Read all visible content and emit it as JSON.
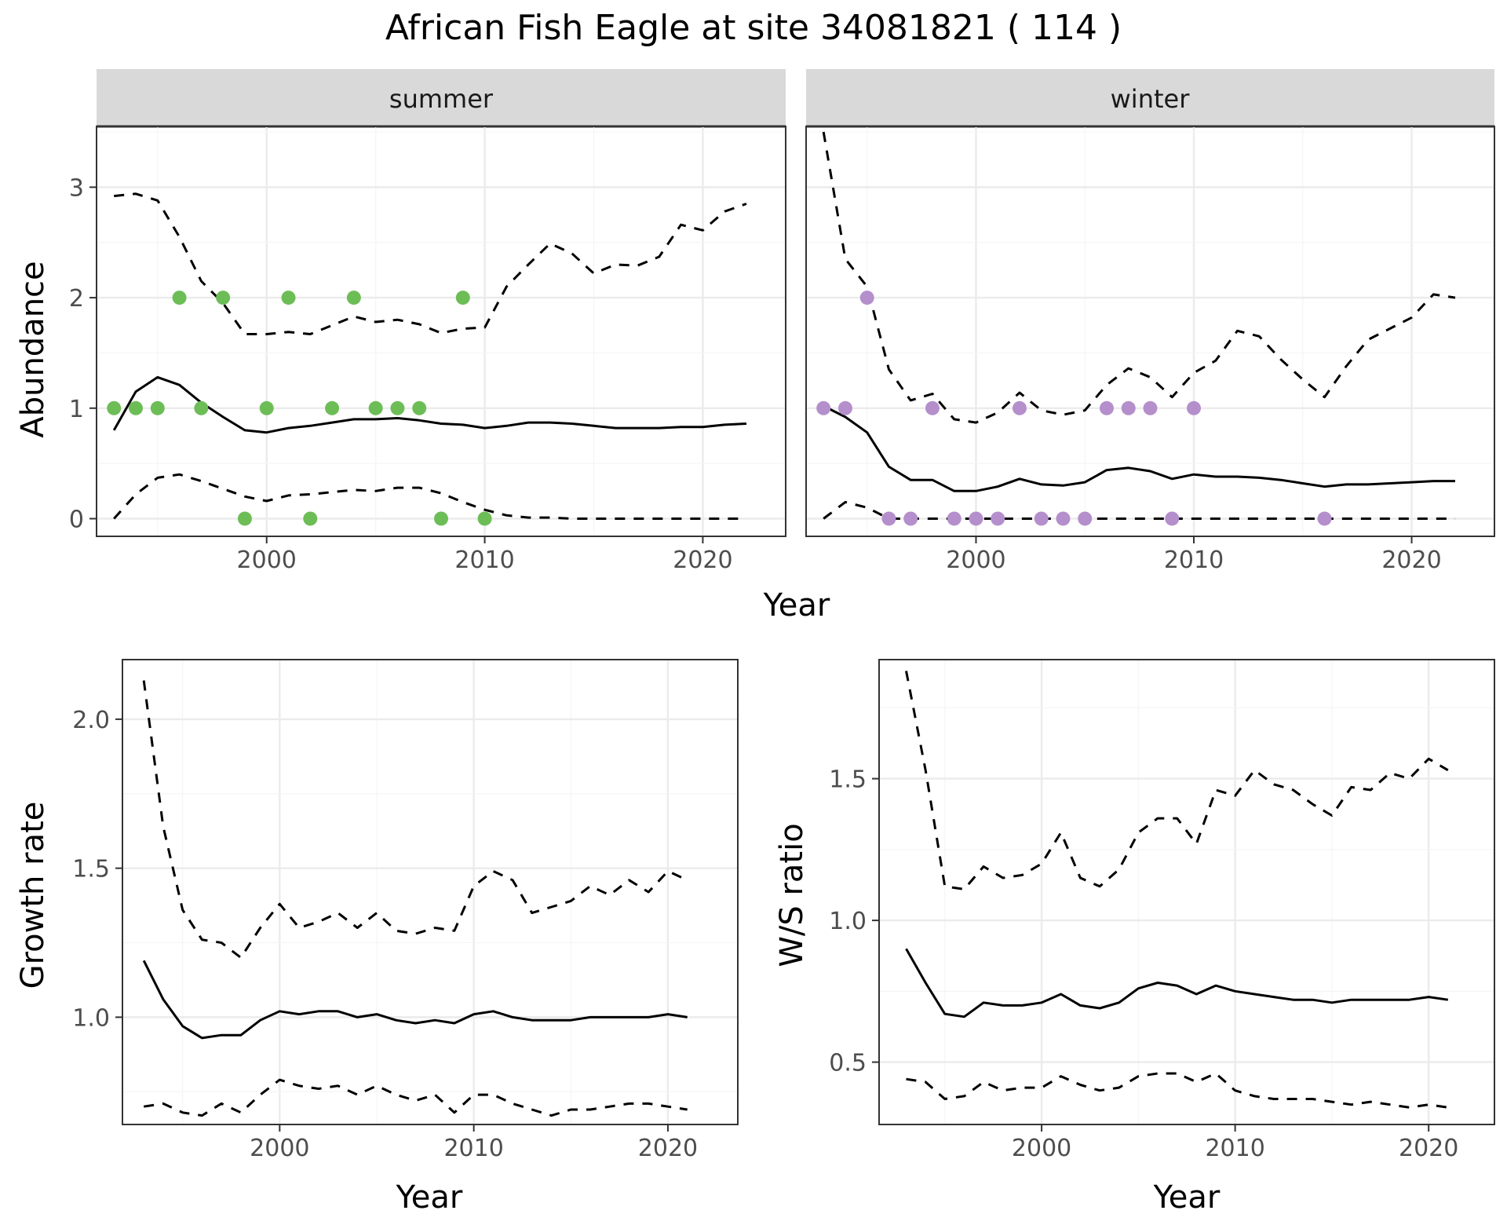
{
  "title": "African Fish Eagle at site 34081821 ( 114 )",
  "colors": {
    "summer_points": "#6dbd57",
    "winter_points": "#b48fcc",
    "strip_fill": "#d9d9d9"
  },
  "chart_data": [
    {
      "type": "line",
      "panel": "summer",
      "strip_label": "summer",
      "xlabel": "Year",
      "ylabel": "Abundance",
      "xlim": [
        1992.2,
        2023.8
      ],
      "ylim": [
        -0.16,
        3.55
      ],
      "xticks": [
        2000,
        2010,
        2020
      ],
      "yticks": [
        0,
        1,
        2,
        3
      ],
      "x": [
        1993,
        1994,
        1995,
        1996,
        1997,
        1998,
        1999,
        2000,
        2001,
        2002,
        2003,
        2004,
        2005,
        2006,
        2007,
        2008,
        2009,
        2010,
        2011,
        2012,
        2013,
        2014,
        2015,
        2016,
        2017,
        2018,
        2019,
        2020,
        2021,
        2022
      ],
      "series": [
        {
          "role": "mean",
          "values": [
            0.8,
            1.15,
            1.28,
            1.21,
            1.05,
            0.92,
            0.8,
            0.78,
            0.82,
            0.84,
            0.87,
            0.9,
            0.9,
            0.91,
            0.89,
            0.86,
            0.85,
            0.82,
            0.84,
            0.87,
            0.87,
            0.86,
            0.84,
            0.82,
            0.82,
            0.82,
            0.83,
            0.83,
            0.85,
            0.86
          ]
        },
        {
          "role": "upper",
          "values": [
            2.92,
            2.94,
            2.88,
            2.55,
            2.15,
            1.95,
            1.67,
            1.67,
            1.69,
            1.67,
            1.75,
            1.83,
            1.78,
            1.8,
            1.76,
            1.68,
            1.72,
            1.73,
            2.1,
            2.3,
            2.49,
            2.4,
            2.22,
            2.3,
            2.29,
            2.37,
            2.66,
            2.61,
            2.78,
            2.85
          ]
        },
        {
          "role": "lower",
          "values": [
            0.0,
            0.22,
            0.37,
            0.4,
            0.34,
            0.27,
            0.2,
            0.16,
            0.21,
            0.22,
            0.24,
            0.26,
            0.25,
            0.28,
            0.28,
            0.23,
            0.15,
            0.08,
            0.03,
            0.01,
            0.01,
            0.0,
            0.0,
            0.0,
            0.0,
            0.0,
            0.0,
            0.0,
            0.0,
            0.0
          ]
        }
      ],
      "points": {
        "x": [
          1993,
          1994,
          1995,
          1996,
          1997,
          1998,
          1999,
          2000,
          2001,
          2002,
          2003,
          2004,
          2005,
          2006,
          2007,
          2008,
          2009,
          2010
        ],
        "y": [
          1,
          1,
          1,
          2,
          1,
          2,
          0,
          1,
          2,
          0,
          1,
          2,
          1,
          1,
          1,
          0,
          2,
          0
        ]
      }
    },
    {
      "type": "line",
      "panel": "winter",
      "strip_label": "winter",
      "xlabel": "Year",
      "ylabel": "",
      "xlim": [
        1992.2,
        2023.8
      ],
      "ylim": [
        -0.16,
        3.55
      ],
      "xticks": [
        2000,
        2010,
        2020
      ],
      "yticks": [
        0,
        1,
        2,
        3
      ],
      "x": [
        1993,
        1994,
        1995,
        1996,
        1997,
        1998,
        1999,
        2000,
        2001,
        2002,
        2003,
        2004,
        2005,
        2006,
        2007,
        2008,
        2009,
        2010,
        2011,
        2012,
        2013,
        2014,
        2015,
        2016,
        2017,
        2018,
        2019,
        2020,
        2021,
        2022
      ],
      "series": [
        {
          "role": "mean",
          "values": [
            1.02,
            0.92,
            0.78,
            0.47,
            0.35,
            0.35,
            0.25,
            0.25,
            0.29,
            0.36,
            0.31,
            0.3,
            0.33,
            0.44,
            0.46,
            0.43,
            0.36,
            0.4,
            0.38,
            0.38,
            0.37,
            0.35,
            0.32,
            0.29,
            0.31,
            0.31,
            0.32,
            0.33,
            0.34,
            0.34
          ]
        },
        {
          "role": "upper",
          "values": [
            3.5,
            2.35,
            2.1,
            1.35,
            1.07,
            1.13,
            0.9,
            0.87,
            0.96,
            1.14,
            0.98,
            0.94,
            0.98,
            1.21,
            1.36,
            1.28,
            1.1,
            1.32,
            1.43,
            1.7,
            1.65,
            1.44,
            1.26,
            1.1,
            1.38,
            1.62,
            1.72,
            1.82,
            2.03,
            2.0
          ]
        },
        {
          "role": "lower",
          "values": [
            0.0,
            0.15,
            0.1,
            0.0,
            0.0,
            0.0,
            0.0,
            0.0,
            0.0,
            0.0,
            0.0,
            0.0,
            0.0,
            0.0,
            0.0,
            0.0,
            0.0,
            0.0,
            0.0,
            0.0,
            0.0,
            0.0,
            0.0,
            0.0,
            0.0,
            0.0,
            0.0,
            0.0,
            0.0,
            0.0
          ]
        }
      ],
      "points": {
        "x": [
          1993,
          1994,
          1995,
          1996,
          1997,
          1998,
          1999,
          2000,
          2001,
          2002,
          2003,
          2004,
          2005,
          2006,
          2007,
          2008,
          2009,
          2010,
          2016
        ],
        "y": [
          1,
          1,
          2,
          0,
          0,
          1,
          0,
          0,
          0,
          1,
          0,
          0,
          0,
          1,
          1,
          1,
          0,
          1,
          0
        ]
      }
    },
    {
      "type": "line",
      "panel": "growth",
      "xlabel": "Year",
      "ylabel": "Growth rate",
      "xlim": [
        1991.9,
        2023.6
      ],
      "ylim": [
        0.64,
        2.2
      ],
      "xticks": [
        2000,
        2010,
        2020
      ],
      "yticks": [
        1.0,
        1.5,
        2.0
      ],
      "ytick_labels": [
        "1.0",
        "1.5",
        "2.0"
      ],
      "x": [
        1993,
        1994,
        1995,
        1996,
        1997,
        1998,
        1999,
        2000,
        2001,
        2002,
        2003,
        2004,
        2005,
        2006,
        2007,
        2008,
        2009,
        2010,
        2011,
        2012,
        2013,
        2014,
        2015,
        2016,
        2017,
        2018,
        2019,
        2020,
        2021
      ],
      "series": [
        {
          "role": "mean",
          "values": [
            1.19,
            1.06,
            0.97,
            0.93,
            0.94,
            0.94,
            0.99,
            1.02,
            1.01,
            1.02,
            1.02,
            1.0,
            1.01,
            0.99,
            0.98,
            0.99,
            0.98,
            1.01,
            1.02,
            1.0,
            0.99,
            0.99,
            0.99,
            1.0,
            1.0,
            1.0,
            1.0,
            1.01,
            1.0
          ]
        },
        {
          "role": "upper",
          "values": [
            2.13,
            1.64,
            1.36,
            1.26,
            1.25,
            1.2,
            1.3,
            1.38,
            1.3,
            1.32,
            1.35,
            1.3,
            1.35,
            1.29,
            1.28,
            1.3,
            1.29,
            1.44,
            1.49,
            1.46,
            1.35,
            1.37,
            1.39,
            1.44,
            1.41,
            1.46,
            1.42,
            1.49,
            1.46
          ]
        },
        {
          "role": "lower",
          "values": [
            0.7,
            0.71,
            0.68,
            0.67,
            0.71,
            0.68,
            0.74,
            0.79,
            0.77,
            0.76,
            0.77,
            0.74,
            0.77,
            0.74,
            0.72,
            0.74,
            0.68,
            0.74,
            0.74,
            0.71,
            0.69,
            0.67,
            0.69,
            0.69,
            0.7,
            0.71,
            0.71,
            0.7,
            0.69
          ]
        }
      ]
    },
    {
      "type": "line",
      "panel": "ws_ratio",
      "xlabel": "Year",
      "ylabel": "W/S ratio",
      "xlim": [
        1991.6,
        2023.4
      ],
      "ylim": [
        0.28,
        1.92
      ],
      "xticks": [
        2000,
        2010,
        2020
      ],
      "yticks": [
        0.5,
        1.0,
        1.5
      ],
      "ytick_labels": [
        "0.5",
        "1.0",
        "1.5"
      ],
      "x": [
        1993,
        1994,
        1995,
        1996,
        1997,
        1998,
        1999,
        2000,
        2001,
        2002,
        2003,
        2004,
        2005,
        2006,
        2007,
        2008,
        2009,
        2010,
        2011,
        2012,
        2013,
        2014,
        2015,
        2016,
        2017,
        2018,
        2019,
        2020,
        2021
      ],
      "series": [
        {
          "role": "mean",
          "values": [
            0.9,
            0.78,
            0.67,
            0.66,
            0.71,
            0.7,
            0.7,
            0.71,
            0.74,
            0.7,
            0.69,
            0.71,
            0.76,
            0.78,
            0.77,
            0.74,
            0.77,
            0.75,
            0.74,
            0.73,
            0.72,
            0.72,
            0.71,
            0.72,
            0.72,
            0.72,
            0.72,
            0.73,
            0.72
          ]
        },
        {
          "role": "upper",
          "values": [
            1.88,
            1.53,
            1.12,
            1.11,
            1.19,
            1.15,
            1.16,
            1.2,
            1.31,
            1.15,
            1.12,
            1.18,
            1.31,
            1.36,
            1.36,
            1.27,
            1.46,
            1.44,
            1.53,
            1.48,
            1.46,
            1.41,
            1.37,
            1.47,
            1.46,
            1.52,
            1.5,
            1.57,
            1.53
          ]
        },
        {
          "role": "lower",
          "values": [
            0.44,
            0.43,
            0.37,
            0.38,
            0.43,
            0.4,
            0.41,
            0.41,
            0.45,
            0.42,
            0.4,
            0.41,
            0.45,
            0.46,
            0.46,
            0.43,
            0.46,
            0.4,
            0.38,
            0.37,
            0.37,
            0.37,
            0.36,
            0.35,
            0.36,
            0.35,
            0.34,
            0.35,
            0.34
          ]
        }
      ]
    }
  ]
}
